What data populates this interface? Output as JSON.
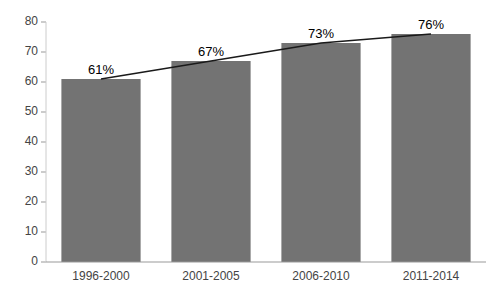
{
  "chart_data": {
    "type": "bar",
    "categories": [
      "1996-2000",
      "2001-2005",
      "2006-2010",
      "2011-2014"
    ],
    "series": [
      {
        "type": "bar",
        "color": "#737373",
        "values": [
          61,
          67,
          73,
          76
        ],
        "value_labels": [
          "61%",
          "67%",
          "73%",
          "76%"
        ]
      },
      {
        "type": "line",
        "color": "#1a1a1a",
        "values": [
          61,
          67,
          73,
          76
        ]
      }
    ],
    "ylim": [
      0,
      80
    ],
    "yticks": [
      0,
      10,
      20,
      30,
      40,
      50,
      60,
      70,
      80
    ],
    "data_labels": true,
    "grid": false
  }
}
